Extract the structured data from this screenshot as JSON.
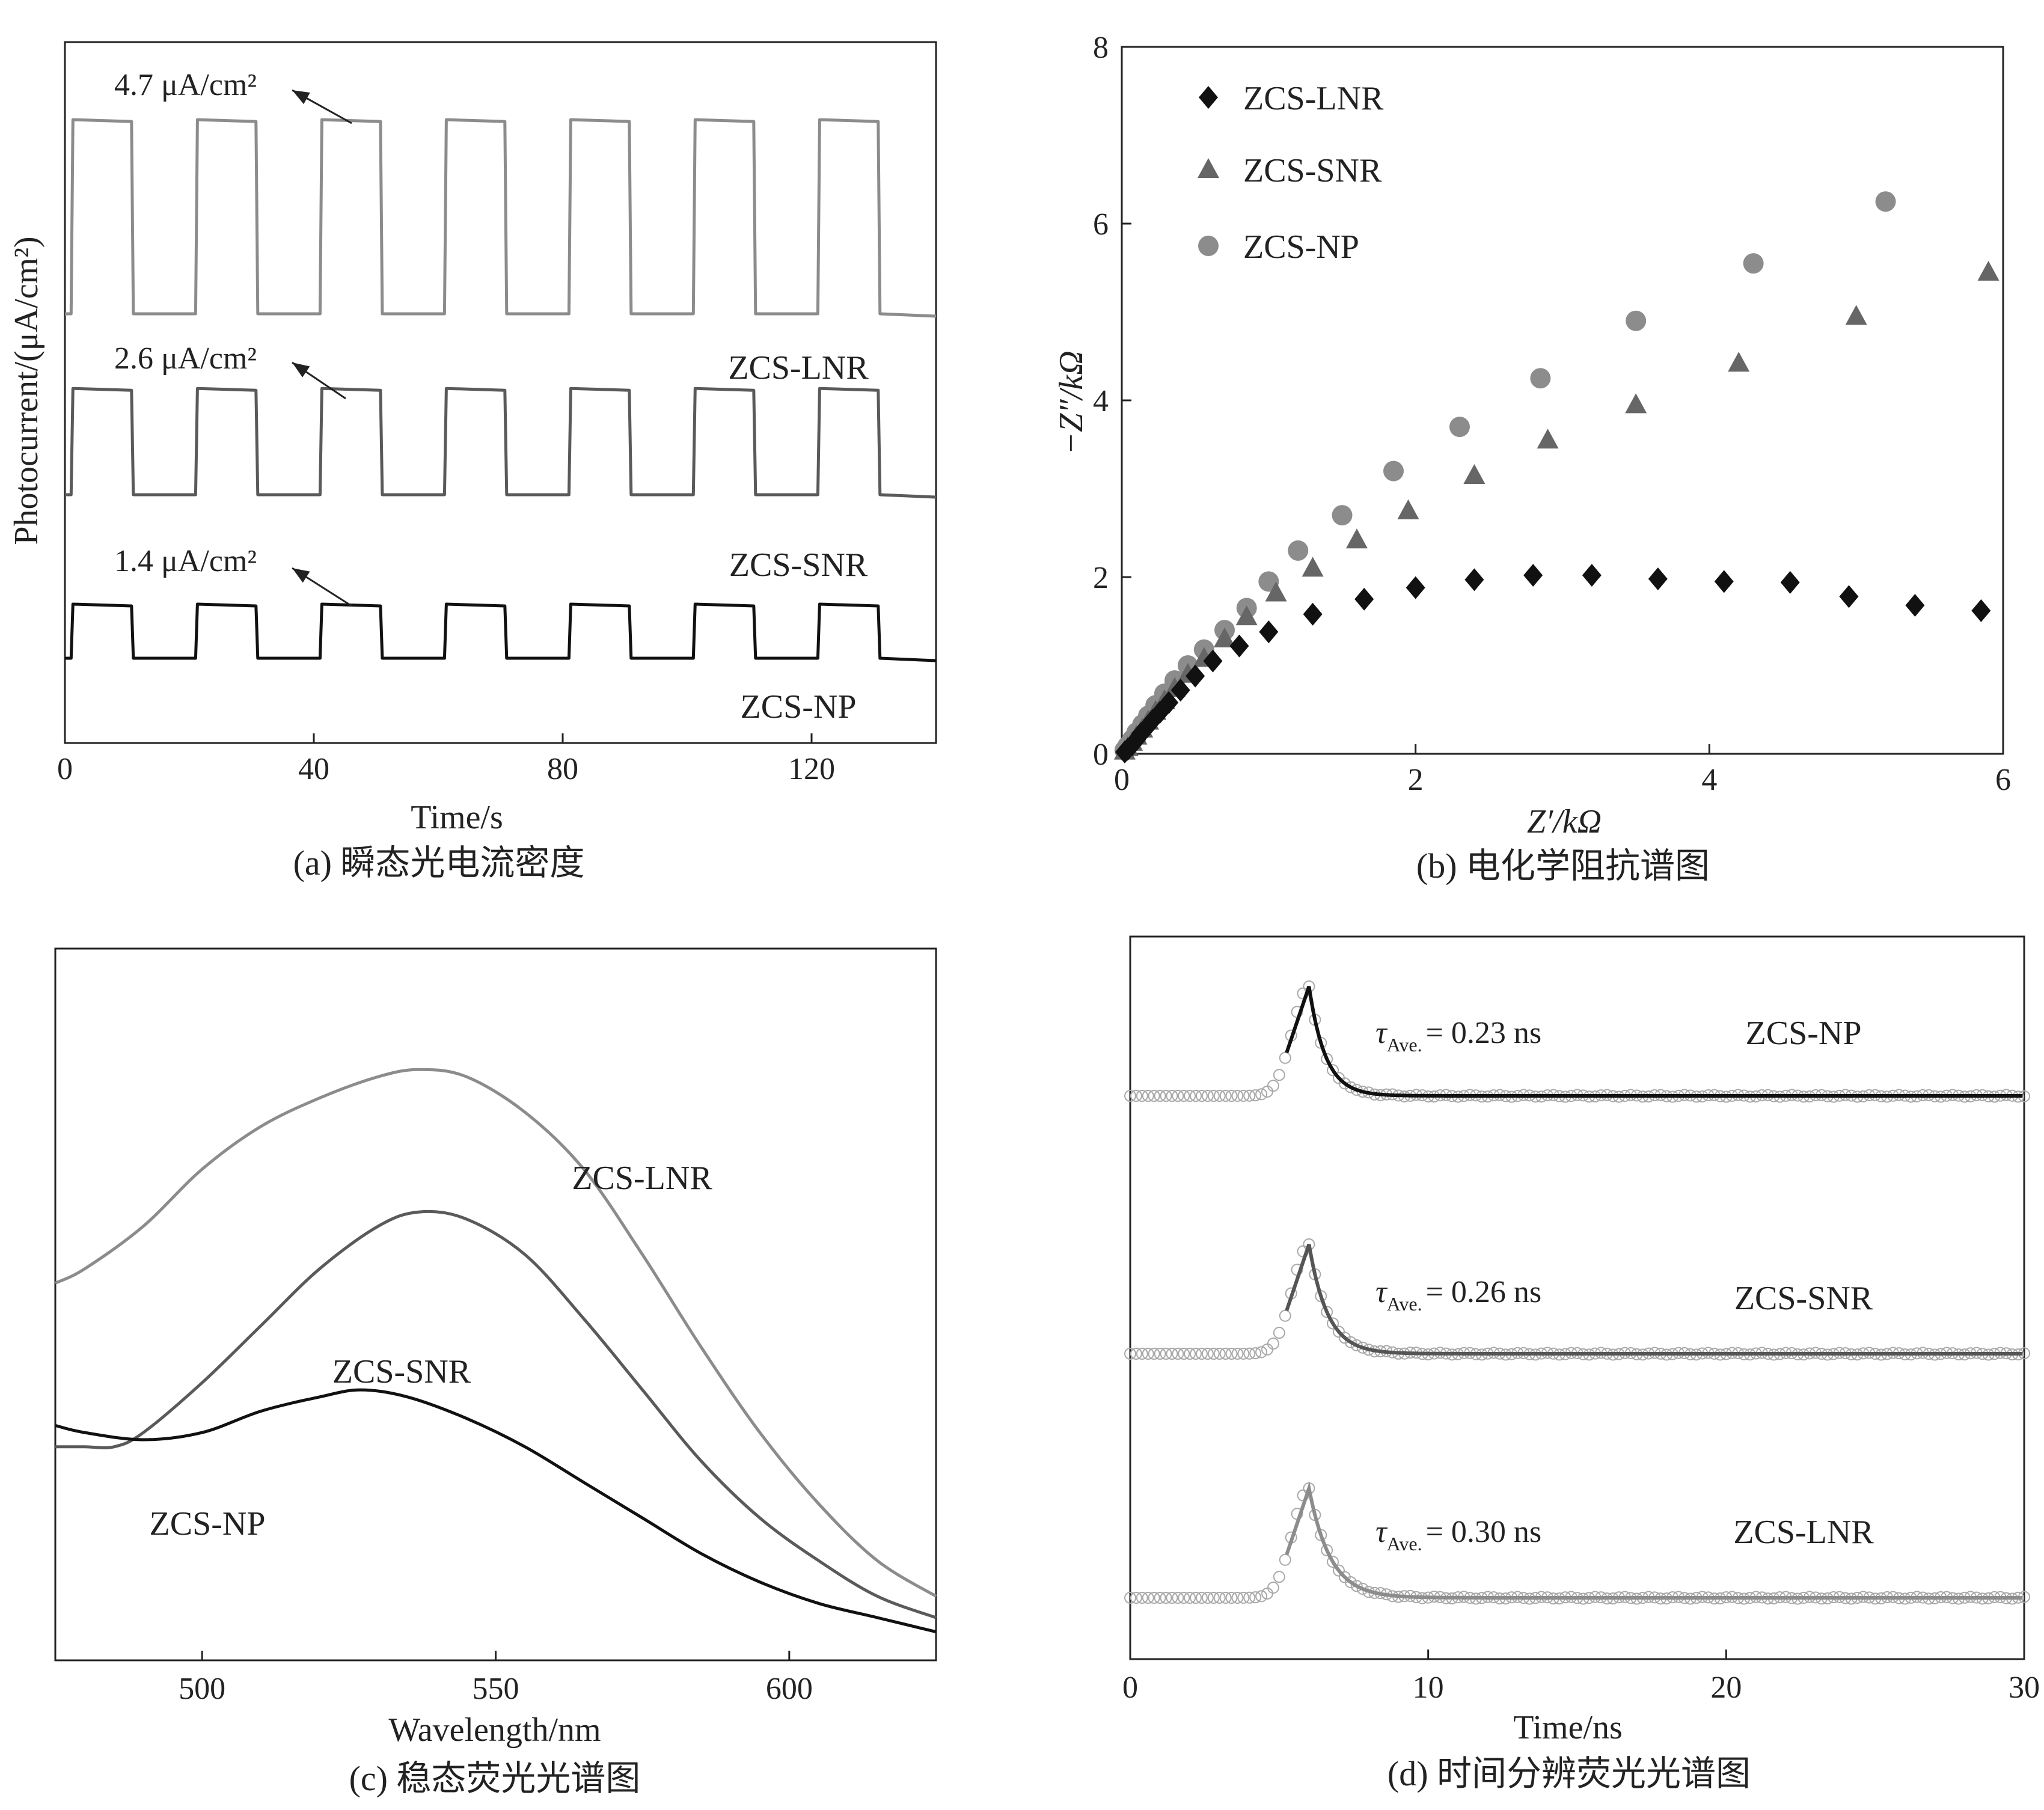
{
  "chart_data": [
    {
      "type": "line",
      "panel": "a",
      "caption": "(a) 瞬态光电流密度",
      "xlabel": "Time/s",
      "ylabel": "Photocurrent/(μA/cm²)",
      "xlim": [
        0,
        140
      ],
      "xticks": [
        0,
        40,
        80,
        120
      ],
      "yticks": [],
      "light_on_intervals": [
        [
          1,
          11
        ],
        [
          21,
          31
        ],
        [
          41,
          51
        ],
        [
          61,
          71
        ],
        [
          81,
          91
        ],
        [
          101,
          111
        ],
        [
          121,
          131
        ]
      ],
      "series": [
        {
          "name": "ZCS-LNR",
          "value_label": "4.7 μA/cm²",
          "baseline": 0,
          "on_value": 4.7,
          "color": "#8c8c8c"
        },
        {
          "name": "ZCS-SNR",
          "value_label": "2.6 μA/cm²",
          "baseline": 0,
          "on_value": 2.6,
          "color": "#5a5a5a"
        },
        {
          "name": "ZCS-NP",
          "value_label": "1.4 μA/cm²",
          "baseline": 0,
          "on_value": 1.4,
          "color": "#111111"
        }
      ],
      "grid": false
    },
    {
      "type": "scatter",
      "panel": "b",
      "caption": "(b) 电化学阻抗谱图",
      "xlabel": "Z′/kΩ",
      "ylabel": "−Z″/kΩ",
      "xlim": [
        0,
        6
      ],
      "ylim": [
        0,
        8
      ],
      "xticks": [
        0,
        2,
        4,
        6
      ],
      "yticks": [
        0,
        2,
        4,
        6,
        8
      ],
      "legend_position": "top-left",
      "series": [
        {
          "name": "ZCS-LNR",
          "marker": "diamond",
          "color": "#111111",
          "x": [
            0.02,
            0.04,
            0.07,
            0.1,
            0.13,
            0.17,
            0.21,
            0.26,
            0.32,
            0.4,
            0.5,
            0.62,
            0.8,
            1.0,
            1.3,
            1.65,
            2.0,
            2.4,
            2.8,
            3.2,
            3.65,
            4.1,
            4.55,
            4.95,
            5.4,
            5.85
          ],
          "y": [
            0.02,
            0.05,
            0.1,
            0.16,
            0.23,
            0.3,
            0.38,
            0.47,
            0.58,
            0.72,
            0.88,
            1.05,
            1.22,
            1.38,
            1.58,
            1.75,
            1.88,
            1.97,
            2.02,
            2.02,
            1.98,
            1.95,
            1.94,
            1.78,
            1.68,
            1.62
          ]
        },
        {
          "name": "ZCS-SNR",
          "marker": "triangle",
          "color": "#666666",
          "x": [
            0.02,
            0.04,
            0.07,
            0.1,
            0.14,
            0.18,
            0.23,
            0.29,
            0.36,
            0.45,
            0.56,
            0.7,
            0.85,
            1.05,
            1.3,
            1.6,
            1.95,
            2.4,
            2.9,
            3.5,
            4.2,
            5.0,
            5.9
          ],
          "y": [
            0.03,
            0.07,
            0.13,
            0.2,
            0.28,
            0.37,
            0.48,
            0.6,
            0.74,
            0.9,
            1.08,
            1.3,
            1.55,
            1.82,
            2.1,
            2.42,
            2.75,
            3.15,
            3.55,
            3.95,
            4.42,
            4.95,
            5.45
          ]
        },
        {
          "name": "ZCS-NP",
          "marker": "circle",
          "color": "#8c8c8c",
          "x": [
            0.02,
            0.04,
            0.07,
            0.1,
            0.14,
            0.18,
            0.23,
            0.29,
            0.36,
            0.45,
            0.56,
            0.7,
            0.85,
            1.0,
            1.2,
            1.5,
            1.85,
            2.3,
            2.85,
            3.5,
            4.3,
            5.2
          ],
          "y": [
            0.04,
            0.09,
            0.16,
            0.24,
            0.33,
            0.43,
            0.55,
            0.68,
            0.83,
            1.0,
            1.18,
            1.4,
            1.65,
            1.95,
            2.3,
            2.7,
            3.2,
            3.7,
            4.25,
            4.9,
            5.55,
            6.25
          ]
        }
      ],
      "grid": false
    },
    {
      "type": "line",
      "panel": "c",
      "caption": "(c) 稳态荧光光谱图",
      "xlabel": "Wavelength/nm",
      "ylabel": "",
      "xlim": [
        475,
        625
      ],
      "xticks": [
        500,
        550,
        600
      ],
      "yticks": [],
      "series": [
        {
          "name": "ZCS-LNR",
          "color": "#8c8c8c",
          "x": [
            475,
            480,
            490,
            500,
            510,
            520,
            530,
            537,
            545,
            555,
            565,
            575,
            585,
            595,
            605,
            615,
            625
          ],
          "y": [
            0.53,
            0.55,
            0.61,
            0.69,
            0.75,
            0.79,
            0.82,
            0.83,
            0.82,
            0.77,
            0.69,
            0.57,
            0.44,
            0.32,
            0.22,
            0.14,
            0.09
          ]
        },
        {
          "name": "ZCS-SNR",
          "color": "#5a5a5a",
          "x": [
            475,
            480,
            485,
            490,
            500,
            510,
            520,
            530,
            537,
            545,
            555,
            565,
            575,
            585,
            595,
            605,
            615,
            625
          ],
          "y": [
            0.3,
            0.3,
            0.3,
            0.32,
            0.39,
            0.47,
            0.55,
            0.61,
            0.63,
            0.62,
            0.57,
            0.48,
            0.38,
            0.28,
            0.2,
            0.14,
            0.09,
            0.06
          ]
        },
        {
          "name": "ZCS-NP",
          "color": "#111111",
          "x": [
            475,
            480,
            490,
            500,
            510,
            520,
            527,
            535,
            545,
            555,
            565,
            575,
            585,
            595,
            605,
            615,
            625
          ],
          "y": [
            0.33,
            0.32,
            0.31,
            0.32,
            0.35,
            0.37,
            0.38,
            0.37,
            0.34,
            0.3,
            0.25,
            0.2,
            0.15,
            0.11,
            0.08,
            0.06,
            0.04
          ]
        }
      ],
      "grid": false
    },
    {
      "type": "line",
      "panel": "d",
      "caption": "(d) 时间分辨荧光光谱图",
      "xlabel": "Time/ns",
      "ylabel": "",
      "xlim": [
        0,
        30
      ],
      "xticks": [
        0,
        10,
        20,
        30
      ],
      "yticks": [],
      "series": [
        {
          "name": "ZCS-NP",
          "tau_symbol": "τ",
          "tau_subscript": "Ave.",
          "tau_value": "= 0.23 ns",
          "tau_ns": 0.23,
          "color": "#111111",
          "peak_time_ns": 6.0
        },
        {
          "name": "ZCS-SNR",
          "tau_symbol": "τ",
          "tau_subscript": "Ave.",
          "tau_value": "= 0.26 ns",
          "tau_ns": 0.26,
          "color": "#555555",
          "peak_time_ns": 6.0
        },
        {
          "name": "ZCS-LNR",
          "tau_symbol": "τ",
          "tau_subscript": "Ave.",
          "tau_value": "= 0.30 ns",
          "tau_ns": 0.3,
          "color": "#8c8c8c",
          "peak_time_ns": 6.0
        }
      ],
      "grid": false
    }
  ]
}
